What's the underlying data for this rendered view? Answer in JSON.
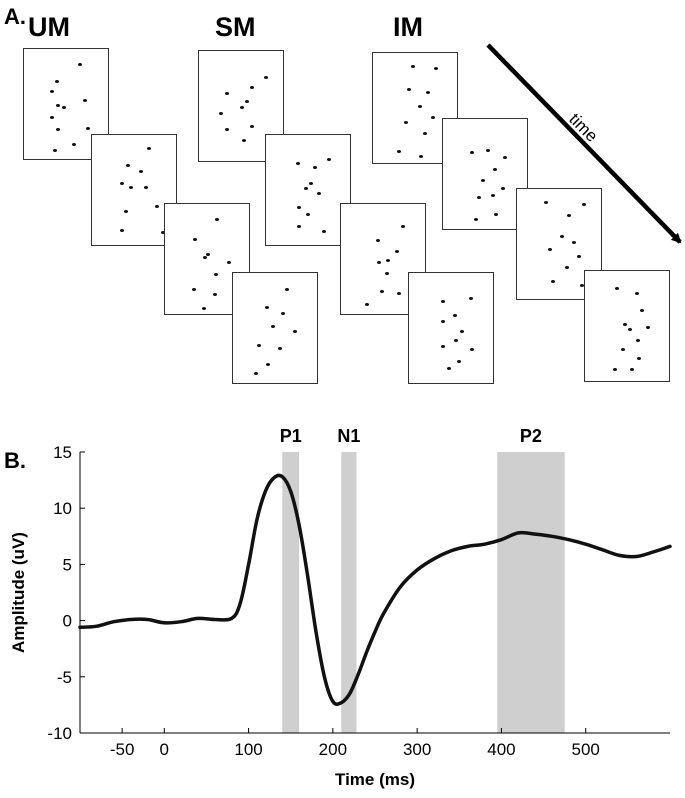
{
  "panel_a": {
    "label": "A.",
    "conditions": [
      "UM",
      "SM",
      "IM"
    ],
    "arrow_label": "time"
  },
  "panel_b": {
    "label": "B."
  },
  "chart_data": {
    "type": "line",
    "xlabel": "Time (ms)",
    "ylabel": "Amplitude (uV)",
    "xlim": [
      -100,
      600
    ],
    "ylim": [
      -10,
      15
    ],
    "xticks": [
      -50,
      0,
      100,
      200,
      300,
      400,
      500
    ],
    "yticks": [
      -10,
      -5,
      0,
      5,
      10,
      15
    ],
    "grid": false,
    "windows": [
      {
        "label": "P1",
        "start": 140,
        "end": 160
      },
      {
        "label": "N1",
        "start": 210,
        "end": 228
      },
      {
        "label": "P2",
        "start": 395,
        "end": 475
      }
    ],
    "series": [
      {
        "x": [
          -100,
          -80,
          -60,
          -40,
          -20,
          0,
          20,
          40,
          60,
          80,
          90,
          100,
          110,
          120,
          130,
          140,
          150,
          160,
          170,
          180,
          190,
          200,
          210,
          220,
          230,
          240,
          250,
          260,
          280,
          300,
          320,
          340,
          360,
          380,
          400,
          420,
          440,
          460,
          480,
          500,
          520,
          540,
          560,
          580,
          600
        ],
        "y": [
          -0.6,
          -0.5,
          -0.1,
          0.1,
          0.1,
          -0.2,
          -0.1,
          0.2,
          0.1,
          0.2,
          1.5,
          5,
          9,
          11.5,
          12.7,
          12.8,
          11.5,
          8.5,
          4,
          -1,
          -5,
          -7.2,
          -7.3,
          -6.5,
          -4.8,
          -2.8,
          -1,
          0.6,
          3,
          4.5,
          5.5,
          6.2,
          6.6,
          6.8,
          7.2,
          7.8,
          7.7,
          7.5,
          7.2,
          6.8,
          6.3,
          5.8,
          5.7,
          6.1,
          6.6
        ]
      }
    ]
  }
}
